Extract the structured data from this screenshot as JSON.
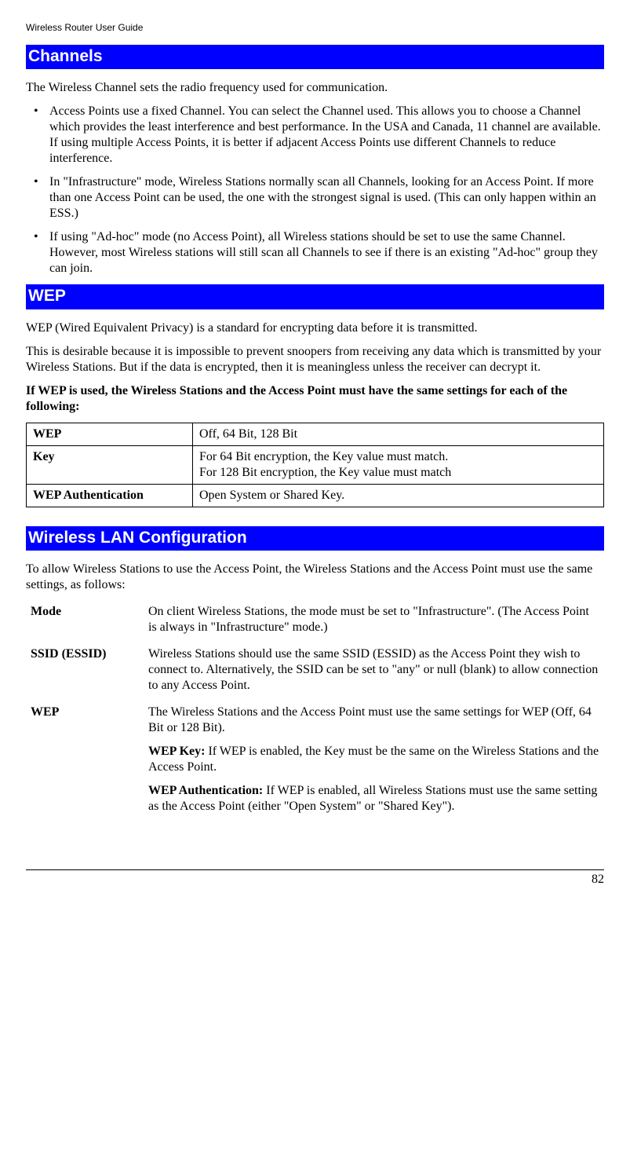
{
  "header": "Wireless Router User Guide",
  "page_number": "82",
  "sections": {
    "channels": {
      "title": "Channels",
      "intro": "The Wireless Channel sets the radio frequency used for communication.",
      "bullets": [
        "Access Points use a fixed Channel. You can select the Channel used. This allows you to choose a Channel which provides the least interference and best performance. In the USA and Canada, 11 channel are available. If using multiple Access Points, it is better if adjacent Access Points use different Channels to reduce interference.",
        "In \"Infrastructure\" mode, Wireless Stations normally scan all Channels, looking for an Access Point. If more than one Access Point can be used, the one with the strongest signal is used. (This can only happen within an ESS.)",
        "If using \"Ad-hoc\" mode (no Access Point), all Wireless stations should be set to use the same Channel. However, most Wireless stations will still scan all Channels to see if there is an existing \"Ad-hoc\" group they can join."
      ]
    },
    "wep": {
      "title": "WEP",
      "p1": "WEP (Wired Equivalent Privacy) is a standard for encrypting data before it is transmitted.",
      "p2": "This is desirable because it is impossible to prevent snoopers from receiving any data which is transmitted by your Wireless Stations. But if the data is encrypted, then it is meaningless unless the receiver can decrypt it.",
      "p3_bold": "If WEP is used, the Wireless Stations and the Access Point must have the same settings for each of the following:",
      "table": [
        {
          "label": "WEP",
          "value": "Off, 64 Bit, 128 Bit"
        },
        {
          "label": "Key",
          "value": "For 64 Bit encryption, the Key value must match. \nFor 128 Bit encryption, the Key value must match"
        },
        {
          "label": "WEP Authentication",
          "value": "Open System or Shared Key."
        }
      ]
    },
    "wlan": {
      "title": "Wireless LAN Configuration",
      "intro": "To allow Wireless Stations to use the Access Point, the Wireless Stations and the Access Point must use the same settings, as follows:",
      "defs": {
        "mode": {
          "term": "Mode",
          "body": "On client Wireless Stations, the mode must be set to \"Infrastructure\". (The Access Point is always in \"Infrastructure\" mode.)"
        },
        "ssid": {
          "term": "SSID (ESSID)",
          "body": "Wireless Stations should use the same SSID (ESSID) as the Access Point they wish to connect to. Alternatively, the SSID can be set to \"any\" or null (blank) to allow connection to any Access Point."
        },
        "wep": {
          "term": "WEP",
          "body1": "The Wireless Stations and the Access Point must use the same settings for WEP (Off, 64 Bit or 128 Bit).",
          "key_label": "WEP Key:",
          "key_body": "  If WEP is enabled, the Key must be the same on the Wireless Stations and the Access Point.",
          "auth_label": "WEP Authentication:",
          "auth_body": "  If WEP is enabled, all Wireless Stations must use the same setting as the Access Point (either \"Open System\" or \"Shared Key\")."
        }
      }
    }
  }
}
